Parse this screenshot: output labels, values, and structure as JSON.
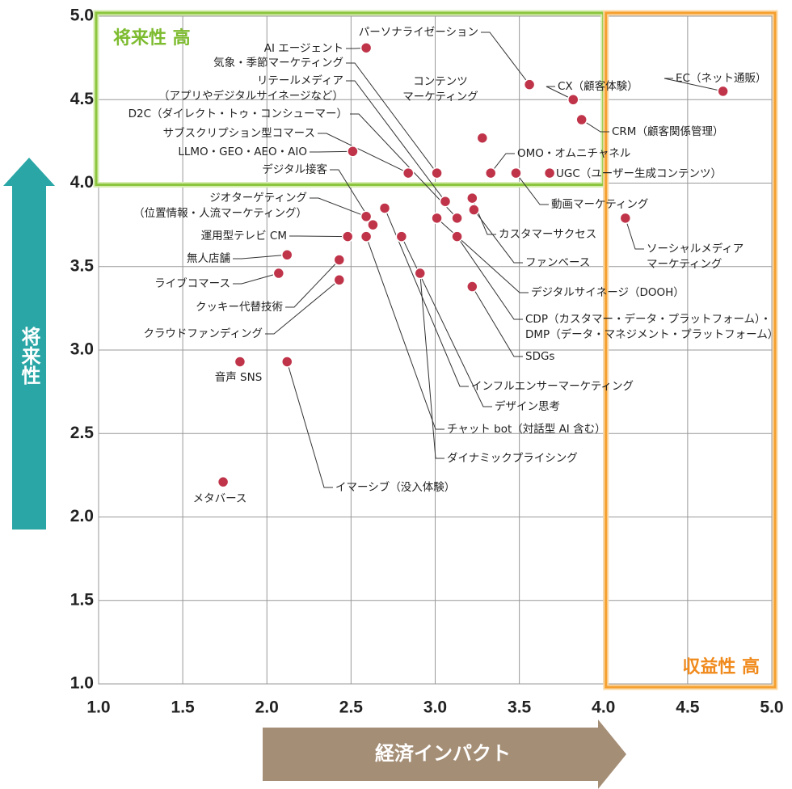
{
  "chart_data": {
    "type": "scatter",
    "x_label": "経済インパクト",
    "y_label": "将来性",
    "zone_labels": [
      "将来性 高",
      "収益性 高"
    ],
    "xlim": [
      1,
      5
    ],
    "ylim": [
      1,
      5
    ],
    "xticks": [
      {
        "value": 1,
        "label": "1.0"
      },
      {
        "value": 1.5,
        "label": "1.5"
      },
      {
        "value": 2,
        "label": "2.0"
      },
      {
        "value": 2.5,
        "label": "2.5"
      },
      {
        "value": 3,
        "label": "3.0"
      },
      {
        "value": 3.5,
        "label": "3.5"
      },
      {
        "value": 4,
        "label": "4.0"
      },
      {
        "value": 4.5,
        "label": "4.5"
      },
      {
        "value": 5,
        "label": "5.0"
      }
    ],
    "yticks": [
      {
        "value": 1,
        "label": "1.0"
      },
      {
        "value": 1.5,
        "label": "1.5"
      },
      {
        "value": 2,
        "label": "2.0"
      },
      {
        "value": 2.5,
        "label": "2.5"
      },
      {
        "value": 3,
        "label": "3.0"
      },
      {
        "value": 3.5,
        "label": "3.5"
      },
      {
        "value": 4,
        "label": "4.0"
      },
      {
        "value": 4.5,
        "label": "4.5"
      },
      {
        "value": 5,
        "label": "5.0"
      }
    ],
    "grid": true,
    "color": "#c0344a",
    "points": [
      {
        "label": [
          "AI エージェント"
        ],
        "x": 2.59,
        "y": 4.81
      },
      {
        "label": [
          "パーソナライゼーション"
        ],
        "x": 3.56,
        "y": 4.59
      },
      {
        "label": [
          "気象・季節マーケティング"
        ],
        "x": 3.01,
        "y": 4.06
      },
      {
        "label": [
          "リテールメディア",
          "（アプリやデジタルサイネージなど）"
        ],
        "x": 3.06,
        "y": 3.89
      },
      {
        "label": [
          "D2C（ダイレクト・トゥ・コンシューマー）"
        ],
        "x": 3.13,
        "y": 3.79
      },
      {
        "label": [
          "サブスクリプション型コマース"
        ],
        "x": 2.84,
        "y": 4.06
      },
      {
        "label": [
          "LLMO・GEO・AEO・AIO"
        ],
        "x": 2.51,
        "y": 4.19
      },
      {
        "label": [
          "デジタル接客"
        ],
        "x": 2.63,
        "y": 3.75
      },
      {
        "label": [
          "ジオターゲティング",
          "（位置情報・人流マーケティング）"
        ],
        "x": 2.59,
        "y": 3.8
      },
      {
        "label": [
          "運用型テレビ CM"
        ],
        "x": 2.48,
        "y": 3.68
      },
      {
        "label": [
          "無人店舗"
        ],
        "x": 2.12,
        "y": 3.57
      },
      {
        "label": [
          "ライブコマース"
        ],
        "x": 2.07,
        "y": 3.46
      },
      {
        "label": [
          "クッキー代替技術"
        ],
        "x": 2.43,
        "y": 3.54
      },
      {
        "label": [
          "クラウドファンディング"
        ],
        "x": 2.43,
        "y": 3.42
      },
      {
        "label": [
          "音声 SNS"
        ],
        "x": 1.84,
        "y": 2.93
      },
      {
        "label": [
          "メタバース"
        ],
        "x": 1.74,
        "y": 2.21
      },
      {
        "label": [
          "イマーシブ（没入体験）"
        ],
        "x": 2.12,
        "y": 2.93
      },
      {
        "label": [
          "ダイナミックプライシング"
        ],
        "x": 2.91,
        "y": 3.46
      },
      {
        "label": [
          "チャット bot（対話型 AI 含む）"
        ],
        "x": 2.59,
        "y": 3.68
      },
      {
        "label": [
          "デザイン思考"
        ],
        "x": 2.8,
        "y": 3.68
      },
      {
        "label": [
          "インフルエンサーマーケティング"
        ],
        "x": 2.7,
        "y": 3.85
      },
      {
        "label": [
          "SDGs"
        ],
        "x": 3.22,
        "y": 3.38
      },
      {
        "label": [
          "CDP（カスタマー・データ・プラットフォーム）・",
          "DMP（データ・マネジメント・プラットフォーム）"
        ],
        "x": 3.13,
        "y": 3.68
      },
      {
        "label": [
          "デジタルサイネージ（DOOH）"
        ],
        "x": 3.01,
        "y": 3.79
      },
      {
        "label": [
          "ファンベース"
        ],
        "x": 3.23,
        "y": 3.84
      },
      {
        "label": [
          "カスタマーサクセス"
        ],
        "x": 3.22,
        "y": 3.91
      },
      {
        "label": [
          "動画マーケティング"
        ],
        "x": 3.48,
        "y": 4.06
      },
      {
        "label": [
          "ソーシャルメディア",
          "マーケティング"
        ],
        "x": 4.13,
        "y": 3.79
      },
      {
        "label": [
          "UGC（ユーザー生成コンテンツ）"
        ],
        "x": 3.68,
        "y": 4.06
      },
      {
        "label": [
          "OMO・オムニチャネル"
        ],
        "x": 3.33,
        "y": 4.06
      },
      {
        "label": [
          "コンテンツ",
          "マーケティング"
        ],
        "x": 3.28,
        "y": 4.27
      },
      {
        "label": [
          "CRM（顧客関係管理）"
        ],
        "x": 3.87,
        "y": 4.38
      },
      {
        "label": [
          "CX（顧客体験）"
        ],
        "x": 3.82,
        "y": 4.5
      },
      {
        "label": [
          "EC（ネット通販）"
        ],
        "x": 4.71,
        "y": 4.55
      }
    ]
  }
}
